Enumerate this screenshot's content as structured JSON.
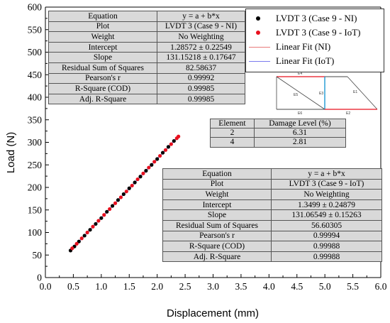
{
  "chart_data": {
    "type": "scatter",
    "xlabel": "Displacement (mm)",
    "ylabel": "Load (N)",
    "xlim": [
      0.0,
      6.0
    ],
    "ylim": [
      0,
      600
    ],
    "x_ticks": [
      "0.0",
      "0.5",
      "1.0",
      "1.5",
      "2.0",
      "2.5",
      "3.0",
      "3.5",
      "4.0",
      "4.5",
      "5.0",
      "5.5",
      "6.0"
    ],
    "y_ticks": [
      "0",
      "50",
      "100",
      "150",
      "200",
      "250",
      "300",
      "350",
      "400",
      "450",
      "500",
      "550",
      "600"
    ],
    "grid": false,
    "legend_position": "top-right",
    "series": [
      {
        "name": "LVDT 3  (Case 9 - NI)",
        "kind": "scatter",
        "color": "#000000",
        "x": [
          0.45,
          0.52,
          0.6,
          0.7,
          0.8,
          0.9,
          1.0,
          1.1,
          1.2,
          1.3,
          1.4,
          1.5,
          1.6,
          1.7,
          1.8,
          1.9,
          2.0,
          2.1,
          2.2,
          2.3
        ],
        "y": [
          60,
          69,
          80,
          93,
          106,
          119,
          132,
          146,
          159,
          172,
          185,
          198,
          211,
          224,
          237,
          250,
          263,
          277,
          290,
          303
        ]
      },
      {
        "name": "LVDT 3  (Case 9 - IoT)",
        "kind": "scatter",
        "color": "#e8101e",
        "x": [
          0.48,
          0.56,
          0.65,
          0.75,
          0.85,
          0.95,
          1.05,
          1.15,
          1.25,
          1.35,
          1.45,
          1.55,
          1.65,
          1.75,
          1.85,
          1.95,
          2.05,
          2.15,
          2.25,
          2.35,
          2.38
        ],
        "y": [
          65,
          75,
          87,
          100,
          113,
          126,
          139,
          152,
          165,
          178,
          191,
          204,
          218,
          231,
          244,
          257,
          270,
          283,
          296,
          309,
          313
        ]
      },
      {
        "name": "Linear Fit (NI)",
        "kind": "line",
        "color": "#e87a7a",
        "x": [
          0.45,
          2.35
        ],
        "y": [
          60.3,
          309.5
        ]
      },
      {
        "name": "Linear Fit (IoT)",
        "kind": "line",
        "color": "#7a7aee",
        "x": [
          0.45,
          2.38
        ],
        "y": [
          60.3,
          313.3
        ]
      }
    ]
  },
  "fit_table_ni": {
    "rows": [
      {
        "label": "Equation",
        "value": "y = a + b*x"
      },
      {
        "label": "Plot",
        "value": "LVDT 3  (Case 9 - NI)"
      },
      {
        "label": "Weight",
        "value": "No Weighting"
      },
      {
        "label": "Intercept",
        "value": "1.28572 ± 0.22549"
      },
      {
        "label": "Slope",
        "value": "131.15218 ± 0.17647"
      },
      {
        "label": "Residual Sum of Squares",
        "value": "82.58637"
      },
      {
        "label": "Pearson's r",
        "value": "0.99992"
      },
      {
        "label": "R-Square (COD)",
        "value": "0.99985"
      },
      {
        "label": "Adj. R-Square",
        "value": "0.99985"
      }
    ]
  },
  "fit_table_iot": {
    "rows": [
      {
        "label": "Equation",
        "value": "y = a + b*x"
      },
      {
        "label": "Plot",
        "value": "LVDT 3  (Case 9 - IoT)"
      },
      {
        "label": "Weight",
        "value": "No Weighting"
      },
      {
        "label": "Intercept",
        "value": "1.3499 ± 0.24879"
      },
      {
        "label": "Slope",
        "value": "131.06549 ± 0.15263"
      },
      {
        "label": "Residual Sum of Squares",
        "value": "56.60305"
      },
      {
        "label": "Pearson's r",
        "value": "0.99994"
      },
      {
        "label": "R-Square (COD)",
        "value": "0.99988"
      },
      {
        "label": "Adj. R-Square",
        "value": "0.99988"
      }
    ]
  },
  "damage_table": {
    "header": [
      "Element",
      "Damage Level (%)"
    ],
    "rows": [
      [
        "2",
        "6.31"
      ],
      [
        "4",
        "2.81"
      ]
    ]
  },
  "schematic": {
    "labels": [
      "E4",
      "E5",
      "E3",
      "E1",
      "E6",
      "E2"
    ],
    "colors": {
      "damaged": "#e8101e",
      "sensor": "#2a9fd6",
      "member": "#444444"
    }
  }
}
